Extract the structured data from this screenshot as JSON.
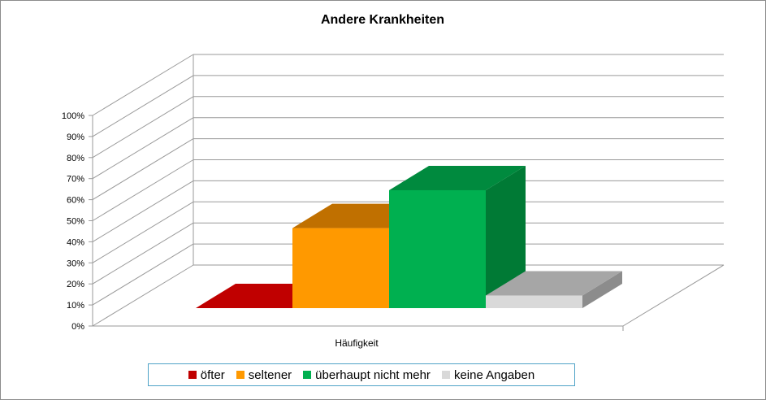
{
  "chart_data": {
    "type": "bar",
    "title": "Andere Krankheiten",
    "categories": [
      "Häufigkeit"
    ],
    "xlabel": "",
    "ylabel": "",
    "ylim": [
      0,
      100
    ],
    "ytick_labels": [
      "0%",
      "10%",
      "20%",
      "30%",
      "40%",
      "50%",
      "60%",
      "70%",
      "80%",
      "90%",
      "100%"
    ],
    "grid": true,
    "legend_position": "bottom",
    "series": [
      {
        "name": "öfter",
        "values": [
          0
        ],
        "color": "#c00000",
        "top_color": "#c00000",
        "side_color": "#900000"
      },
      {
        "name": "seltener",
        "values": [
          38
        ],
        "color": "#ff9900",
        "top_color": "#c07000",
        "side_color": "#c07000"
      },
      {
        "name": "überhaupt nicht mehr",
        "values": [
          56
        ],
        "color": "#00b050",
        "top_color": "#008a3e",
        "side_color": "#007a35"
      },
      {
        "name": "keine Angaben",
        "values": [
          6
        ],
        "color": "#d9d9d9",
        "top_color": "#a6a6a6",
        "side_color": "#8c8c8c"
      }
    ]
  }
}
